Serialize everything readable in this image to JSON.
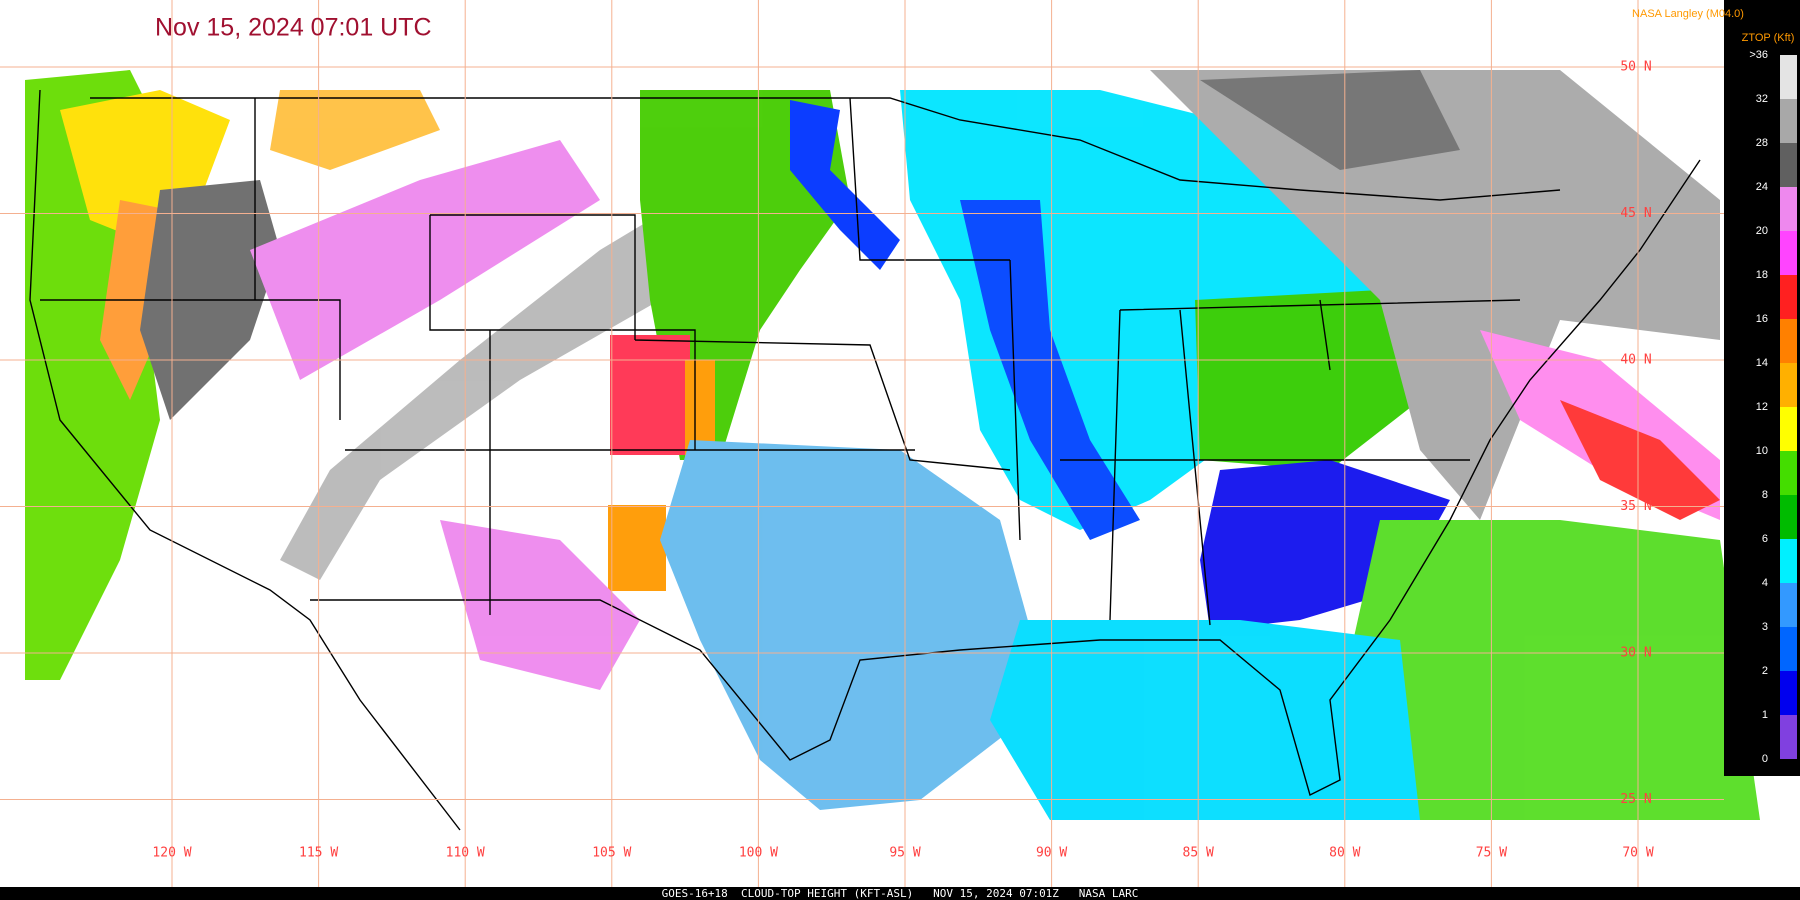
{
  "title": "Nov 15, 2024 07:01 UTC",
  "credit": "NASA Langley (M04.0)",
  "colorbar": {
    "title": "ZTOP (Kft)",
    "labels": [
      ">36",
      "32",
      "28",
      "24",
      "20",
      "18",
      "16",
      "14",
      "12",
      "10",
      "8",
      "6",
      "4",
      "3",
      "2",
      "1",
      "0"
    ],
    "colors": [
      "#e4e4e4",
      "#a8a8a8",
      "#606060",
      "#ee88ee",
      "#ff44ff",
      "#ff2020",
      "#ff8000",
      "#ffb000",
      "#ffff00",
      "#44dd00",
      "#00bb00",
      "#00f0ff",
      "#3399ff",
      "#0066ff",
      "#0000ee",
      "#8040e0"
    ]
  },
  "latitude_labels": [
    "50 N",
    "45 N",
    "40 N",
    "35 N",
    "30 N",
    "25 N"
  ],
  "longitude_labels": [
    "120 W",
    "115 W",
    "110 W",
    "105 W",
    "100 W",
    "95 W",
    "90 W",
    "85 W",
    "80 W",
    "75 W",
    "70 W"
  ],
  "footer": "GOES-16+18  CLOUD-TOP HEIGHT (KFT-ASL)   NOV 15, 2024 07:01Z   NASA LARC"
}
